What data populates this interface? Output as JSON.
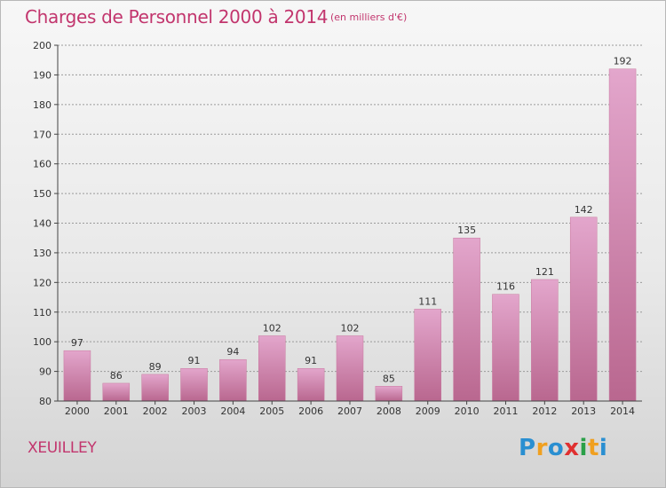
{
  "title": "Charges de Personnel 2000 à 2014",
  "subtitle": "(en milliers d'€)",
  "commune": "XEUILLEY",
  "logo": {
    "letters": [
      "P",
      "r",
      "o",
      "x",
      "i",
      "t",
      "i"
    ],
    "colors": [
      "#2a8fd1",
      "#f0a020",
      "#2a8fd1",
      "#e03030",
      "#2aa048",
      "#f0a020",
      "#2a8fd1"
    ]
  },
  "colors": {
    "bar_top": "#e3a6cc",
    "bar_bottom": "#b9678f",
    "bar_edge": "#c9789f",
    "axis": "#444444",
    "grid": "#9a9a9a"
  },
  "chart_data": {
    "type": "bar",
    "categories": [
      "2000",
      "2001",
      "2002",
      "2003",
      "2004",
      "2005",
      "2006",
      "2007",
      "2008",
      "2009",
      "2010",
      "2011",
      "2012",
      "2013",
      "2014"
    ],
    "values": [
      97,
      86,
      89,
      91,
      94,
      102,
      91,
      102,
      85,
      111,
      135,
      116,
      121,
      142,
      192
    ],
    "ylim": [
      80,
      200
    ],
    "yticks": [
      80,
      90,
      100,
      110,
      120,
      130,
      140,
      150,
      160,
      170,
      180,
      190,
      200
    ],
    "grid": true,
    "xlabel": "",
    "ylabel": ""
  }
}
